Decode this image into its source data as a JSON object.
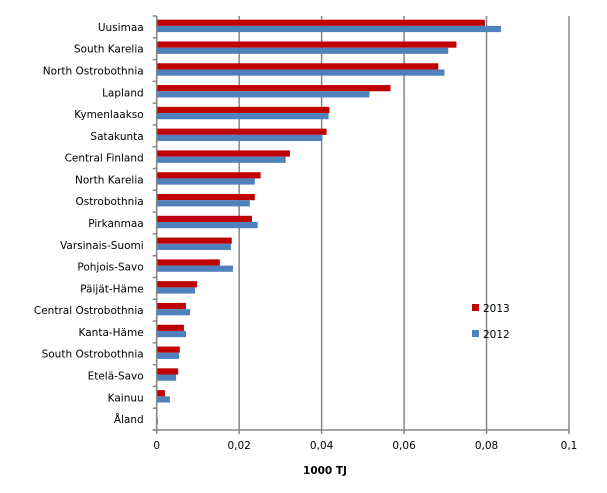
{
  "chart_data": {
    "type": "bar",
    "orientation": "horizontal",
    "categories": [
      "Uusimaa",
      "South Karelia",
      "North Ostrobothnia",
      "Lapland",
      "Kymenlaakso",
      "Satakunta",
      "Central Finland",
      "North Karelia",
      "Ostrobothnia",
      "Pirkanmaa",
      "Varsinais-Suomi",
      "Pohjois-Savo",
      "Päijät-Häme",
      "Central Ostrobothnia",
      "Kanta-Häme",
      "South Ostrobothnia",
      "Etelä-Savo",
      "Kainuu",
      "Åland"
    ],
    "series": [
      {
        "name": "2013",
        "color": "#c00000",
        "values": [
          0.0796,
          0.0727,
          0.0683,
          0.0567,
          0.0419,
          0.0412,
          0.0323,
          0.0252,
          0.0238,
          0.0231,
          0.0182,
          0.0153,
          0.0098,
          0.0071,
          0.0066,
          0.0056,
          0.0052,
          0.002,
          0.0
        ]
      },
      {
        "name": "2012",
        "color": "#4f81bd",
        "values": [
          0.0835,
          0.0707,
          0.0698,
          0.0516,
          0.0417,
          0.0402,
          0.0313,
          0.0238,
          0.0226,
          0.0245,
          0.018,
          0.0185,
          0.0093,
          0.0081,
          0.0071,
          0.0054,
          0.0047,
          0.0032,
          0.0003
        ]
      }
    ],
    "xlabel": "1000 TJ",
    "xlim": [
      0,
      0.1
    ],
    "xticks": [
      "0",
      "0,02",
      "0,04",
      "0,06",
      "0,08",
      "0,1"
    ],
    "grid": "vertical",
    "legend": "right"
  }
}
